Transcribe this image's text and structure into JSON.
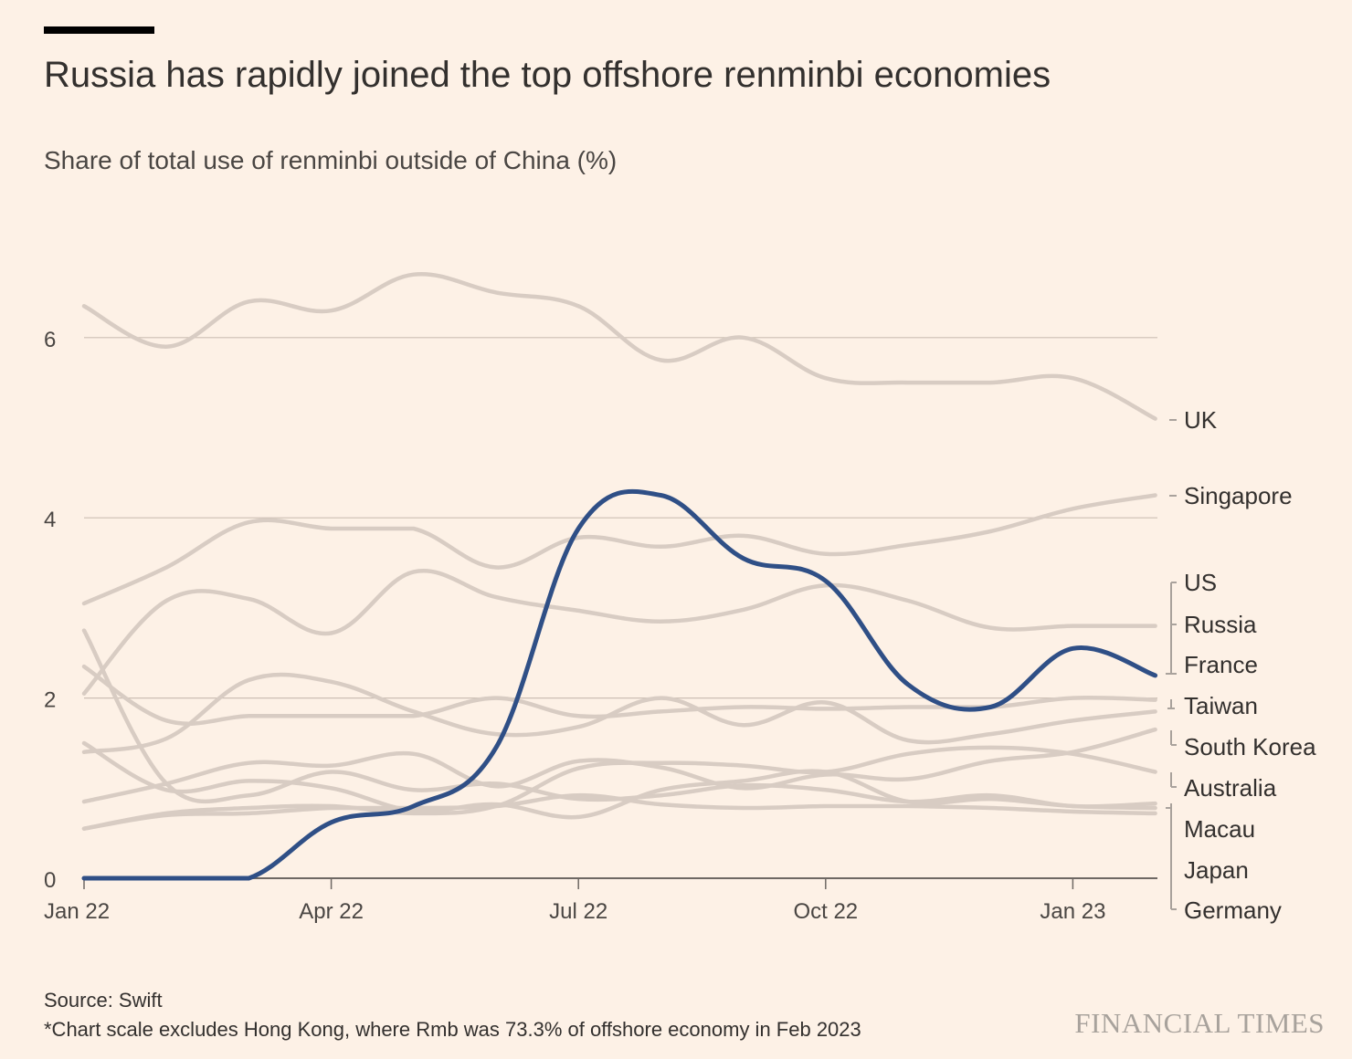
{
  "header": {
    "title": "Russia has rapidly joined the top offshore renminbi economies",
    "subtitle": "Share of total use of renminbi outside of China (%)"
  },
  "footer": {
    "source": "Source: Swift",
    "note": "*Chart scale excludes Hong Kong, where Rmb was 73.3% of offshore economy in Feb 2023",
    "brand": "FINANCIAL TIMES"
  },
  "colors": {
    "background": "#fdf1e6",
    "highlight": "#2f4f86",
    "muted_line": "#d8ccc3",
    "grid": "#ccbfb4"
  },
  "chart_data": {
    "type": "line",
    "ylabel": "",
    "xlabel": "",
    "ylim": [
      0,
      7
    ],
    "yticks": [
      0,
      2,
      4,
      6
    ],
    "x": [
      "Jan 22",
      "Feb 22",
      "Mar 22",
      "Apr 22",
      "May 22",
      "Jun 22",
      "Jul 22",
      "Aug 22",
      "Sep 22",
      "Oct 22",
      "Nov 22",
      "Dec 22",
      "Jan 23",
      "Feb 23"
    ],
    "xtick_labels": [
      {
        "label": "Jan 22",
        "index": 0
      },
      {
        "label": "Apr 22",
        "index": 3
      },
      {
        "label": "Jul 22",
        "index": 6
      },
      {
        "label": "Oct 22",
        "index": 9
      },
      {
        "label": "Jan 23",
        "index": 12
      }
    ],
    "grid": true,
    "highlight_series": "Russia",
    "series": [
      {
        "name": "UK",
        "values": [
          6.35,
          5.9,
          6.4,
          6.3,
          6.7,
          6.5,
          6.35,
          5.75,
          6.0,
          5.55,
          5.5,
          5.5,
          5.55,
          5.1
        ]
      },
      {
        "name": "Singapore",
        "values": [
          3.05,
          3.45,
          3.95,
          3.88,
          3.88,
          3.45,
          3.78,
          3.68,
          3.8,
          3.6,
          3.7,
          3.85,
          4.1,
          4.25
        ]
      },
      {
        "name": "US",
        "values": [
          2.05,
          3.08,
          3.1,
          2.72,
          3.4,
          3.12,
          2.97,
          2.85,
          2.98,
          3.25,
          3.08,
          2.78,
          2.8,
          2.8
        ]
      },
      {
        "name": "Russia",
        "values": [
          0,
          0,
          0,
          0.62,
          0.8,
          1.45,
          3.88,
          4.25,
          3.55,
          3.3,
          2.15,
          1.9,
          2.55,
          2.25
        ]
      },
      {
        "name": "France",
        "values": [
          2.35,
          1.75,
          1.8,
          1.8,
          1.8,
          2.0,
          1.8,
          1.85,
          1.9,
          1.88,
          1.9,
          1.9,
          2.0,
          1.98
        ]
      },
      {
        "name": "Taiwan",
        "values": [
          1.4,
          1.55,
          2.2,
          2.18,
          1.85,
          1.6,
          1.68,
          2.0,
          1.7,
          1.95,
          1.53,
          1.6,
          1.75,
          1.85
        ]
      },
      {
        "name": "South Korea",
        "values": [
          0.55,
          0.72,
          0.78,
          0.8,
          0.72,
          0.8,
          1.22,
          1.28,
          1.25,
          1.18,
          1.38,
          1.45,
          1.38,
          1.18
        ]
      },
      {
        "name": "Australia",
        "values": [
          0.85,
          1.05,
          1.28,
          1.25,
          1.38,
          1.02,
          1.3,
          1.23,
          1.0,
          1.15,
          1.1,
          1.3,
          1.4,
          1.65
        ]
      },
      {
        "name": "Macau",
        "values": [
          2.75,
          1.05,
          0.92,
          1.18,
          0.98,
          1.05,
          0.88,
          0.92,
          1.03,
          0.98,
          0.85,
          0.92,
          0.8,
          0.83
        ]
      },
      {
        "name": "Japan",
        "values": [
          1.5,
          0.98,
          1.08,
          1.0,
          0.75,
          0.82,
          0.68,
          0.98,
          1.08,
          1.18,
          0.85,
          0.88,
          0.8,
          0.78
        ]
      },
      {
        "name": "Germany",
        "values": [
          0.55,
          0.7,
          0.72,
          0.78,
          0.78,
          0.8,
          0.92,
          0.82,
          0.78,
          0.8,
          0.8,
          0.78,
          0.74,
          0.72
        ]
      }
    ],
    "legend": {
      "placement": "right",
      "labels": [
        "UK",
        "Singapore",
        "US",
        "Russia",
        "France",
        "Taiwan",
        "South Korea",
        "Australia",
        "Macau",
        "Japan",
        "Germany"
      ]
    }
  }
}
